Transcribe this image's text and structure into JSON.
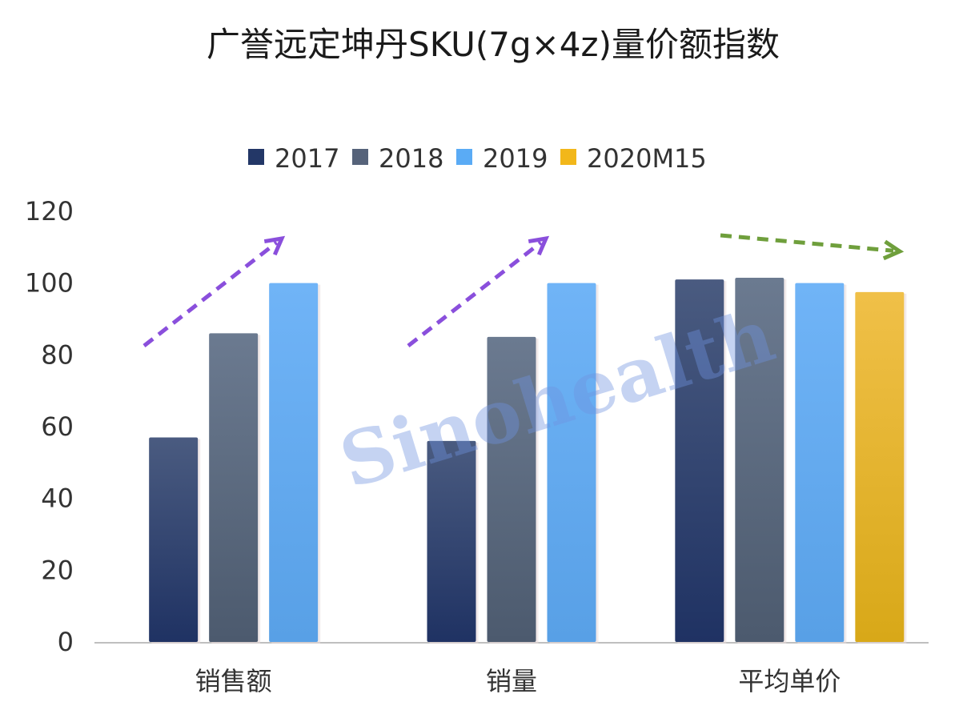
{
  "chart_data": {
    "type": "bar",
    "title": "广誉远定坤丹SKU(7g×4z)量价额指数",
    "categories": [
      "销售额",
      "销量",
      "平均单价"
    ],
    "series": [
      {
        "name": "2017",
        "values": [
          57,
          56,
          101
        ],
        "color_top": "#4a5b80",
        "color_bottom": "#1f3263"
      },
      {
        "name": "2018",
        "values": [
          86,
          85,
          101.5
        ],
        "color_top": "#6b7a90",
        "color_bottom": "#4c5a6e"
      },
      {
        "name": "2019",
        "values": [
          100,
          100,
          100
        ],
        "color_top": "#70b4f7",
        "color_bottom": "#58a0e6"
      },
      {
        "name": "2020M15",
        "values": [
          null,
          null,
          97.5
        ],
        "color_top": "#f0c048",
        "color_bottom": "#d8a818"
      }
    ],
    "legend_colors": [
      "#233767",
      "#56637a",
      "#5aabf5",
      "#f2b71a"
    ],
    "ylim": [
      0,
      120
    ],
    "yticks": [
      0,
      20,
      40,
      60,
      80,
      100,
      120
    ],
    "ytick_labels": [
      "0",
      "20",
      "40",
      "60",
      "80",
      "100",
      "120"
    ],
    "xlabel": "",
    "ylabel": "",
    "legend_position": "top",
    "grid": false,
    "annotations": [
      {
        "type": "dashed-arrow",
        "direction": "up",
        "over": "销售额",
        "color": "#8a4fdc"
      },
      {
        "type": "dashed-arrow",
        "direction": "up",
        "over": "销量",
        "color": "#8a4fdc"
      },
      {
        "type": "dashed-arrow",
        "direction": "flat-down",
        "over": "平均单价",
        "color": "#6f9f3c"
      }
    ],
    "watermark": "Sinohealth"
  }
}
